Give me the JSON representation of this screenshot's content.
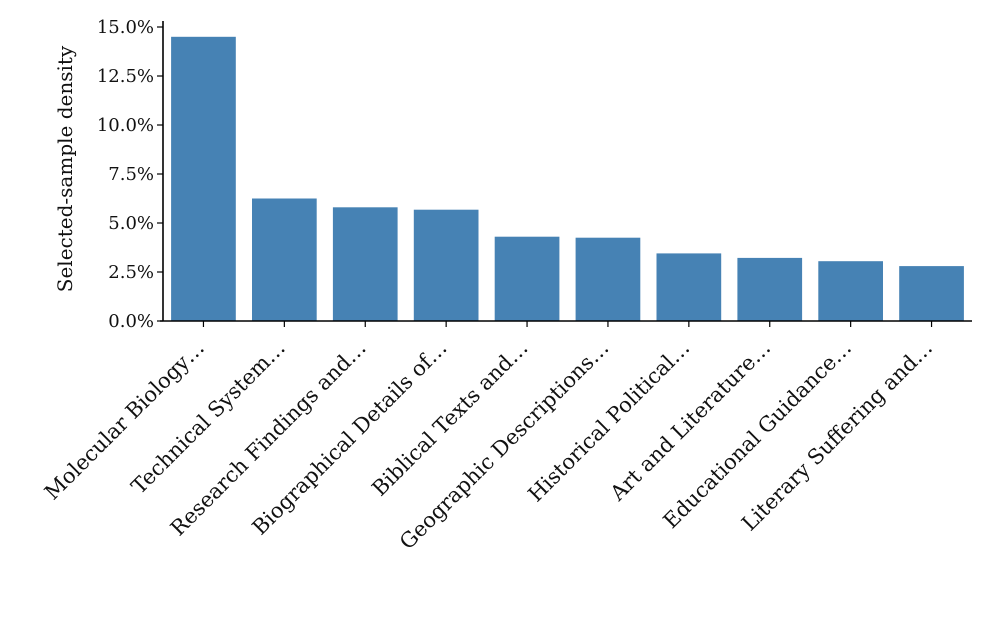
{
  "chart_data": {
    "type": "bar",
    "title": "",
    "xlabel": "",
    "ylabel": "Selected-sample density",
    "categories": [
      "Molecular Biology…",
      "Technical System…",
      "Research Findings and…",
      "Biographical Details of…",
      "Biblical Texts and…",
      "Geographic Descriptions…",
      "Historical Political…",
      "Art and Literature…",
      "Educational Guidance…",
      "Literary Suffering and…"
    ],
    "values": [
      14.5,
      6.25,
      5.8,
      5.68,
      4.3,
      4.25,
      3.45,
      3.22,
      3.05,
      2.8
    ],
    "value_format": "percent",
    "ylim": [
      0,
      15
    ],
    "yticks": [
      0,
      2.5,
      5,
      7.5,
      10,
      12.5,
      15
    ],
    "ytick_labels": [
      "0.0%",
      "2.5%",
      "5.0%",
      "7.5%",
      "10.0%",
      "12.5%",
      "15.0%"
    ],
    "bar_color": "#4682b4",
    "grid": false,
    "legend": "none"
  }
}
